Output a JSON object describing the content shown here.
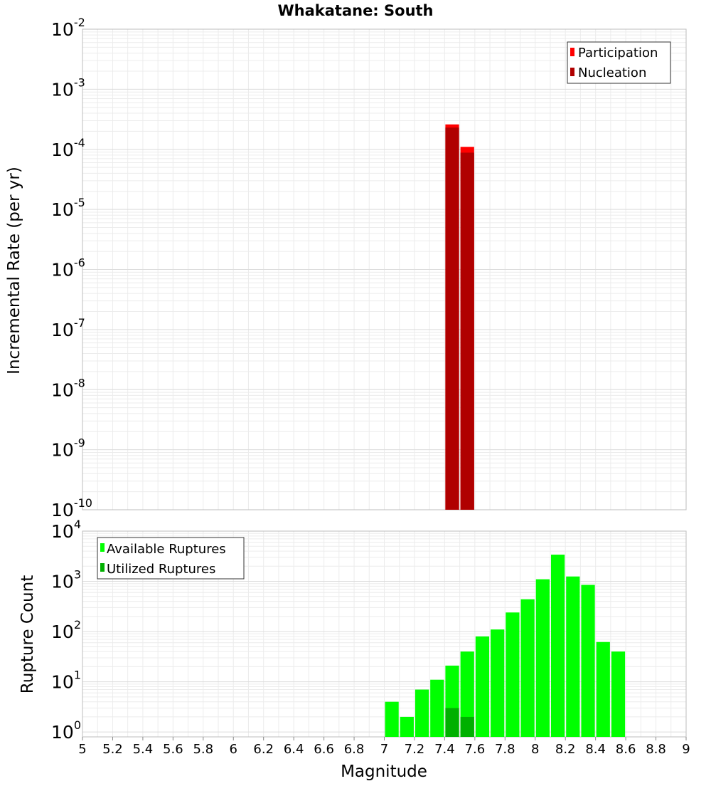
{
  "chart_data": [
    {
      "type": "bar",
      "title": "Whakatane: South",
      "ylabel": "Incremental Rate (per yr)",
      "xlabel": "",
      "y_scale": "log",
      "ylim": [
        1e-10,
        0.01
      ],
      "xlim": [
        5,
        9
      ],
      "grid": true,
      "legend_position": "top-right",
      "y_ticks": [
        {
          "base": "10",
          "exp": "-10"
        },
        {
          "base": "10",
          "exp": "-9"
        },
        {
          "base": "10",
          "exp": "-8"
        },
        {
          "base": "10",
          "exp": "-7"
        },
        {
          "base": "10",
          "exp": "-6"
        },
        {
          "base": "10",
          "exp": "-5"
        },
        {
          "base": "10",
          "exp": "-4"
        },
        {
          "base": "10",
          "exp": "-3"
        },
        {
          "base": "10",
          "exp": "-2"
        }
      ],
      "series": [
        {
          "name": "Participation",
          "color": "#ff0000",
          "x": [
            7.45,
            7.55
          ],
          "values": [
            0.00026,
            0.00011
          ]
        },
        {
          "name": "Nucleation",
          "color": "#b00000",
          "x": [
            7.45,
            7.55
          ],
          "values": [
            0.00023,
            8.8e-05
          ]
        }
      ]
    },
    {
      "type": "bar",
      "title": "",
      "ylabel": "Rupture Count",
      "xlabel": "Magnitude",
      "y_scale": "log",
      "ylim": [
        0.8,
        10000
      ],
      "xlim": [
        5,
        9
      ],
      "grid": true,
      "legend_position": "top-left",
      "y_ticks": [
        {
          "base": "10",
          "exp": "0"
        },
        {
          "base": "10",
          "exp": "1"
        },
        {
          "base": "10",
          "exp": "2"
        },
        {
          "base": "10",
          "exp": "3"
        },
        {
          "base": "10",
          "exp": "4"
        }
      ],
      "x_ticks": [
        "5",
        "5.2",
        "5.4",
        "5.6",
        "5.8",
        "6",
        "6.2",
        "6.4",
        "6.6",
        "6.8",
        "7",
        "7.2",
        "7.4",
        "7.6",
        "7.8",
        "8",
        "8.2",
        "8.4",
        "8.6",
        "8.8",
        "9"
      ],
      "series": [
        {
          "name": "Available Ruptures",
          "color": "#00ff00",
          "x": [
            7.05,
            7.15,
            7.25,
            7.35,
            7.45,
            7.55,
            7.65,
            7.75,
            7.85,
            7.95,
            8.05,
            8.15,
            8.25,
            8.35,
            8.45,
            8.55
          ],
          "values": [
            4,
            2,
            7,
            11,
            21,
            40,
            80,
            110,
            240,
            440,
            1100,
            3400,
            1250,
            850,
            62,
            40
          ]
        },
        {
          "name": "Utilized Ruptures",
          "color": "#00b000",
          "x": [
            7.45,
            7.55
          ],
          "values": [
            3,
            2
          ]
        }
      ]
    }
  ]
}
